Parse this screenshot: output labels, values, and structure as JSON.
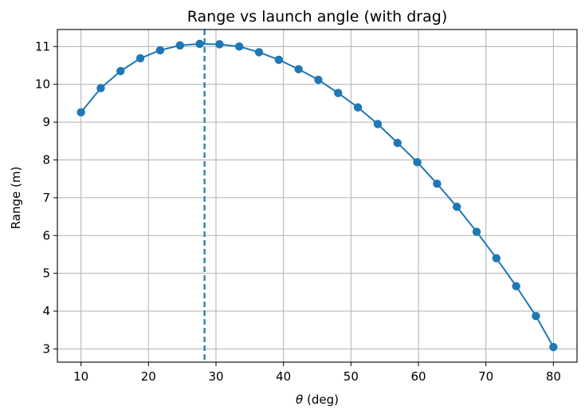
{
  "chart_data": {
    "type": "line",
    "title": "Range vs launch angle (with drag)",
    "xlabel_symbol": "θ",
    "xlabel_text": " (deg)",
    "ylabel": "Range (m)",
    "xlim": [
      6.5,
      83.5
    ],
    "ylim": [
      2.65,
      11.45
    ],
    "xticks": [
      10,
      20,
      30,
      40,
      50,
      60,
      70,
      80
    ],
    "yticks": [
      3,
      4,
      5,
      6,
      7,
      8,
      9,
      10,
      11
    ],
    "grid": true,
    "series": [
      {
        "color": "#1f77b4",
        "marker": "circle",
        "x": [
          10.0,
          12.93,
          15.86,
          18.79,
          21.72,
          24.66,
          27.59,
          30.52,
          33.45,
          36.38,
          39.31,
          42.24,
          45.17,
          48.1,
          51.03,
          53.97,
          56.9,
          59.83,
          62.76,
          65.69,
          68.62,
          71.55,
          74.48,
          77.41,
          80.0
        ],
        "values": [
          9.26,
          9.9,
          10.35,
          10.69,
          10.9,
          11.03,
          11.07,
          11.06,
          11.0,
          10.85,
          10.65,
          10.4,
          10.12,
          9.77,
          9.39,
          8.95,
          8.45,
          7.94,
          7.37,
          6.76,
          6.1,
          5.4,
          4.66,
          3.87,
          3.05
        ]
      }
    ],
    "reference_line": {
      "orientation": "vertical",
      "x": 28.3,
      "style": "dashed",
      "color": "#1f77b4"
    }
  }
}
